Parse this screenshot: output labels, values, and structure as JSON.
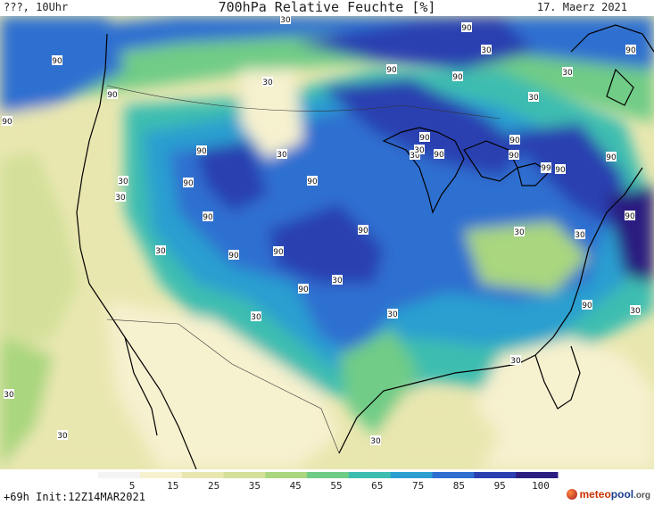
{
  "header": {
    "left": "???, 10Uhr",
    "title": "700hPa Relative Feuchte [%]",
    "date": "17. Maerz 2021"
  },
  "footer": {
    "run_info": "+69h Init:12Z14MAR2021",
    "brand": {
      "part1": "meteo",
      "part2": "pool",
      "part3": ".org"
    }
  },
  "colorbar": {
    "labels": [
      "5",
      "15",
      "25",
      "35",
      "45",
      "55",
      "65",
      "75",
      "85",
      "95",
      "100"
    ],
    "colors": [
      "#f4f4f4",
      "#f6f1cf",
      "#e9e7b0",
      "#d4e09a",
      "#a9d67e",
      "#6fcc86",
      "#3dbdb0",
      "#2b9fd0",
      "#2f6fd0",
      "#2b3fb0",
      "#2a1f80"
    ]
  },
  "contour_labels": [
    {
      "text": "30"
    },
    {
      "text": "90"
    },
    {
      "text": "90"
    },
    {
      "text": "90"
    },
    {
      "text": "90"
    },
    {
      "text": "90"
    },
    {
      "text": "90"
    },
    {
      "text": "30"
    },
    {
      "text": "90"
    },
    {
      "text": "30"
    },
    {
      "text": "30"
    },
    {
      "text": "90"
    },
    {
      "text": "90"
    },
    {
      "text": "90"
    },
    {
      "text": "90"
    },
    {
      "text": "30"
    },
    {
      "text": "90"
    },
    {
      "text": "90"
    },
    {
      "text": "90"
    },
    {
      "text": "90"
    },
    {
      "text": "99"
    },
    {
      "text": "90"
    },
    {
      "text": "90"
    },
    {
      "text": "90"
    },
    {
      "text": "30"
    },
    {
      "text": "30"
    },
    {
      "text": "30"
    },
    {
      "text": "30"
    },
    {
      "text": "30"
    },
    {
      "text": "90"
    },
    {
      "text": "30"
    },
    {
      "text": "30"
    },
    {
      "text": "30"
    },
    {
      "text": "30"
    },
    {
      "text": "30"
    },
    {
      "text": "30"
    },
    {
      "text": "90"
    },
    {
      "text": "99"
    },
    {
      "text": "30"
    },
    {
      "text": "90"
    },
    {
      "text": "30"
    },
    {
      "text": "30"
    },
    {
      "text": "90"
    },
    {
      "text": "90"
    },
    {
      "text": "30"
    },
    {
      "text": "30"
    }
  ]
}
